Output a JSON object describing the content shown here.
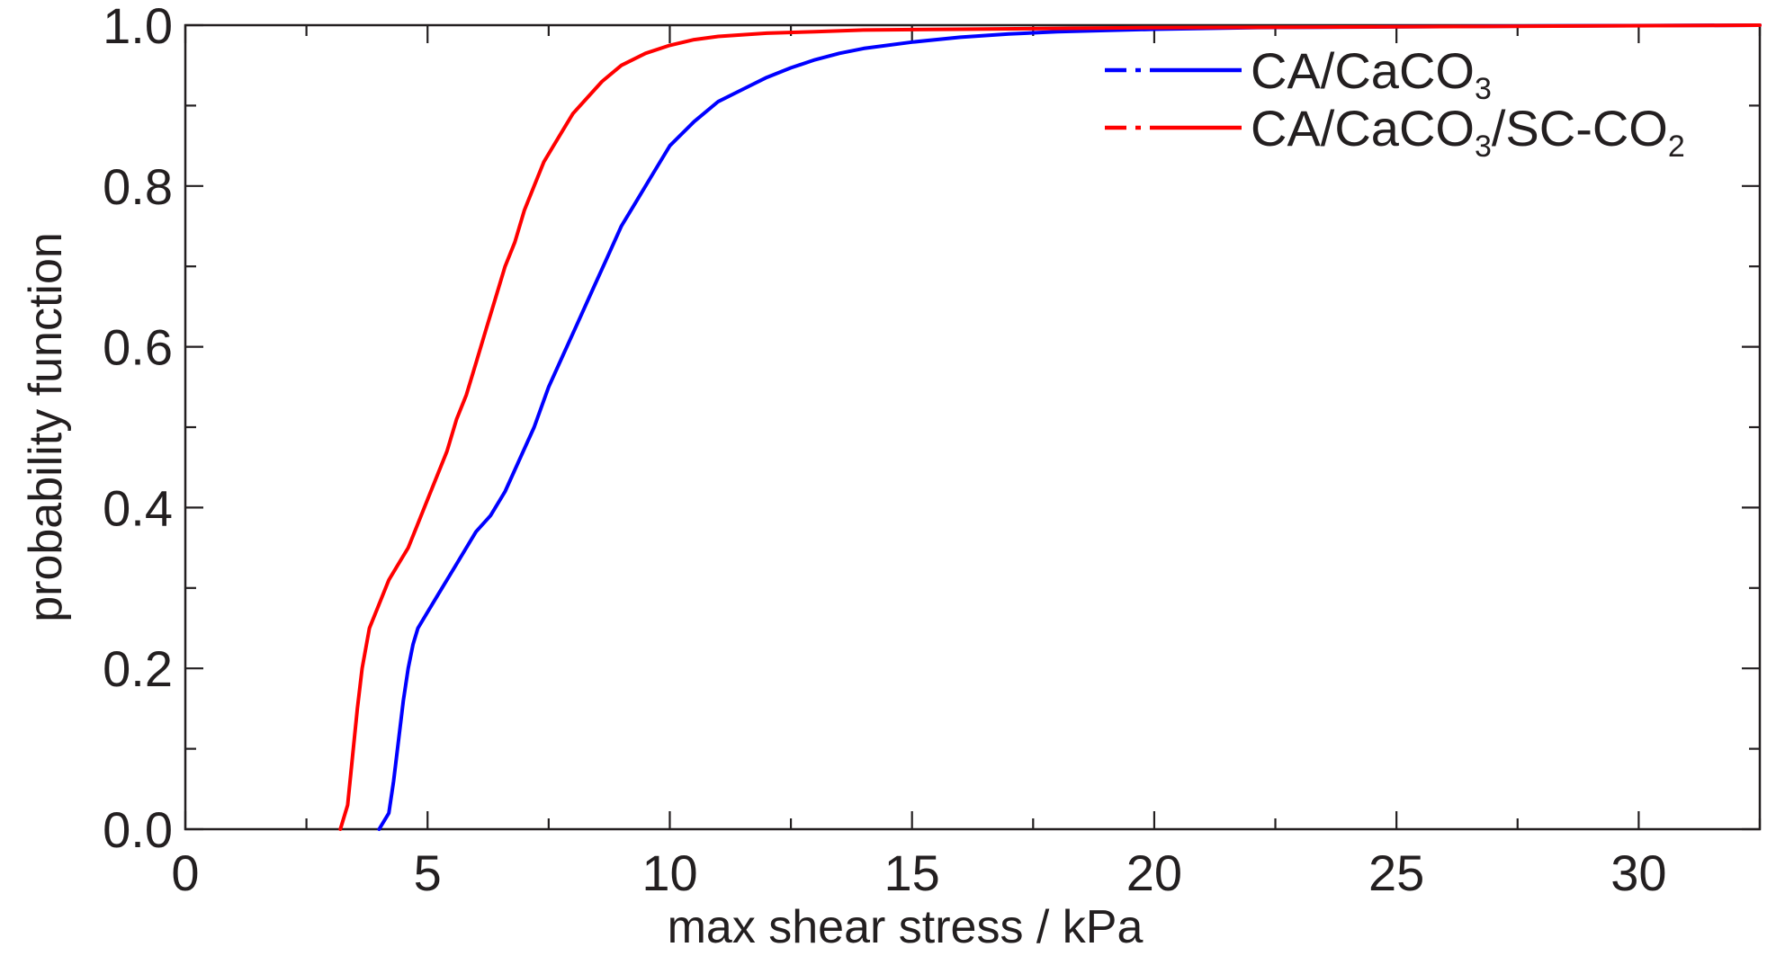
{
  "chart_data": {
    "type": "line",
    "title": "",
    "xlabel": "max shear stress / kPa",
    "ylabel": "probability function",
    "xlim": [
      0,
      32.5
    ],
    "ylim": [
      0,
      1.0
    ],
    "x_ticks": [
      0,
      5,
      10,
      15,
      20,
      25,
      30
    ],
    "x_tick_labels": [
      "0",
      "5",
      "10",
      "15",
      "20",
      "25",
      "30"
    ],
    "x_minor_step": 2.5,
    "y_ticks": [
      0.0,
      0.2,
      0.4,
      0.6,
      0.8,
      1.0
    ],
    "y_tick_labels": [
      "0.0",
      "0.2",
      "0.4",
      "0.6",
      "0.8",
      "1.0"
    ],
    "y_minor_step": 0.1,
    "grid": false,
    "legend_position": "top-right",
    "series": [
      {
        "name": "CA/CaCO3",
        "legend": {
          "base": "CA/CaCO",
          "sub1": "3",
          "mid": "",
          "sub2": ""
        },
        "color": "#0000ff",
        "x": [
          4.0,
          4.2,
          4.3,
          4.4,
          4.5,
          4.6,
          4.7,
          4.8,
          5.0,
          5.2,
          5.5,
          5.8,
          6.0,
          6.3,
          6.6,
          6.9,
          7.2,
          7.5,
          7.8,
          8.1,
          8.4,
          8.7,
          9.0,
          9.3,
          9.6,
          10.0,
          10.5,
          11.0,
          11.5,
          12.0,
          12.5,
          13.0,
          13.5,
          14.0,
          15.0,
          16.0,
          17.0,
          18.0,
          20.0,
          22.0,
          25.0,
          28.0,
          32.5
        ],
        "y": [
          0.0,
          0.02,
          0.06,
          0.11,
          0.16,
          0.2,
          0.23,
          0.25,
          0.27,
          0.29,
          0.32,
          0.35,
          0.37,
          0.39,
          0.42,
          0.46,
          0.5,
          0.55,
          0.59,
          0.63,
          0.67,
          0.71,
          0.75,
          0.78,
          0.81,
          0.85,
          0.88,
          0.905,
          0.92,
          0.935,
          0.947,
          0.957,
          0.965,
          0.971,
          0.979,
          0.985,
          0.989,
          0.992,
          0.995,
          0.997,
          0.998,
          0.999,
          1.0
        ]
      },
      {
        "name": "CA/CaCO3/SC-CO2",
        "legend": {
          "base": "CA/CaCO",
          "sub1": "3",
          "mid": "/SC-CO",
          "sub2": "2"
        },
        "color": "#ff0000",
        "x": [
          3.2,
          3.35,
          3.45,
          3.55,
          3.65,
          3.8,
          4.0,
          4.2,
          4.4,
          4.6,
          4.8,
          5.0,
          5.2,
          5.4,
          5.6,
          5.8,
          6.0,
          6.2,
          6.4,
          6.6,
          6.8,
          7.0,
          7.2,
          7.4,
          7.6,
          7.8,
          8.0,
          8.3,
          8.6,
          9.0,
          9.5,
          10.0,
          10.5,
          11.0,
          12.0,
          13.0,
          14.0,
          16.0,
          18.0,
          20.0,
          25.0,
          32.5
        ],
        "y": [
          0.0,
          0.03,
          0.09,
          0.15,
          0.2,
          0.25,
          0.28,
          0.31,
          0.33,
          0.35,
          0.38,
          0.41,
          0.44,
          0.47,
          0.51,
          0.54,
          0.58,
          0.62,
          0.66,
          0.7,
          0.73,
          0.77,
          0.8,
          0.83,
          0.85,
          0.87,
          0.89,
          0.91,
          0.93,
          0.95,
          0.965,
          0.975,
          0.982,
          0.986,
          0.99,
          0.992,
          0.994,
          0.995,
          0.996,
          0.997,
          0.998,
          1.0
        ]
      }
    ]
  }
}
